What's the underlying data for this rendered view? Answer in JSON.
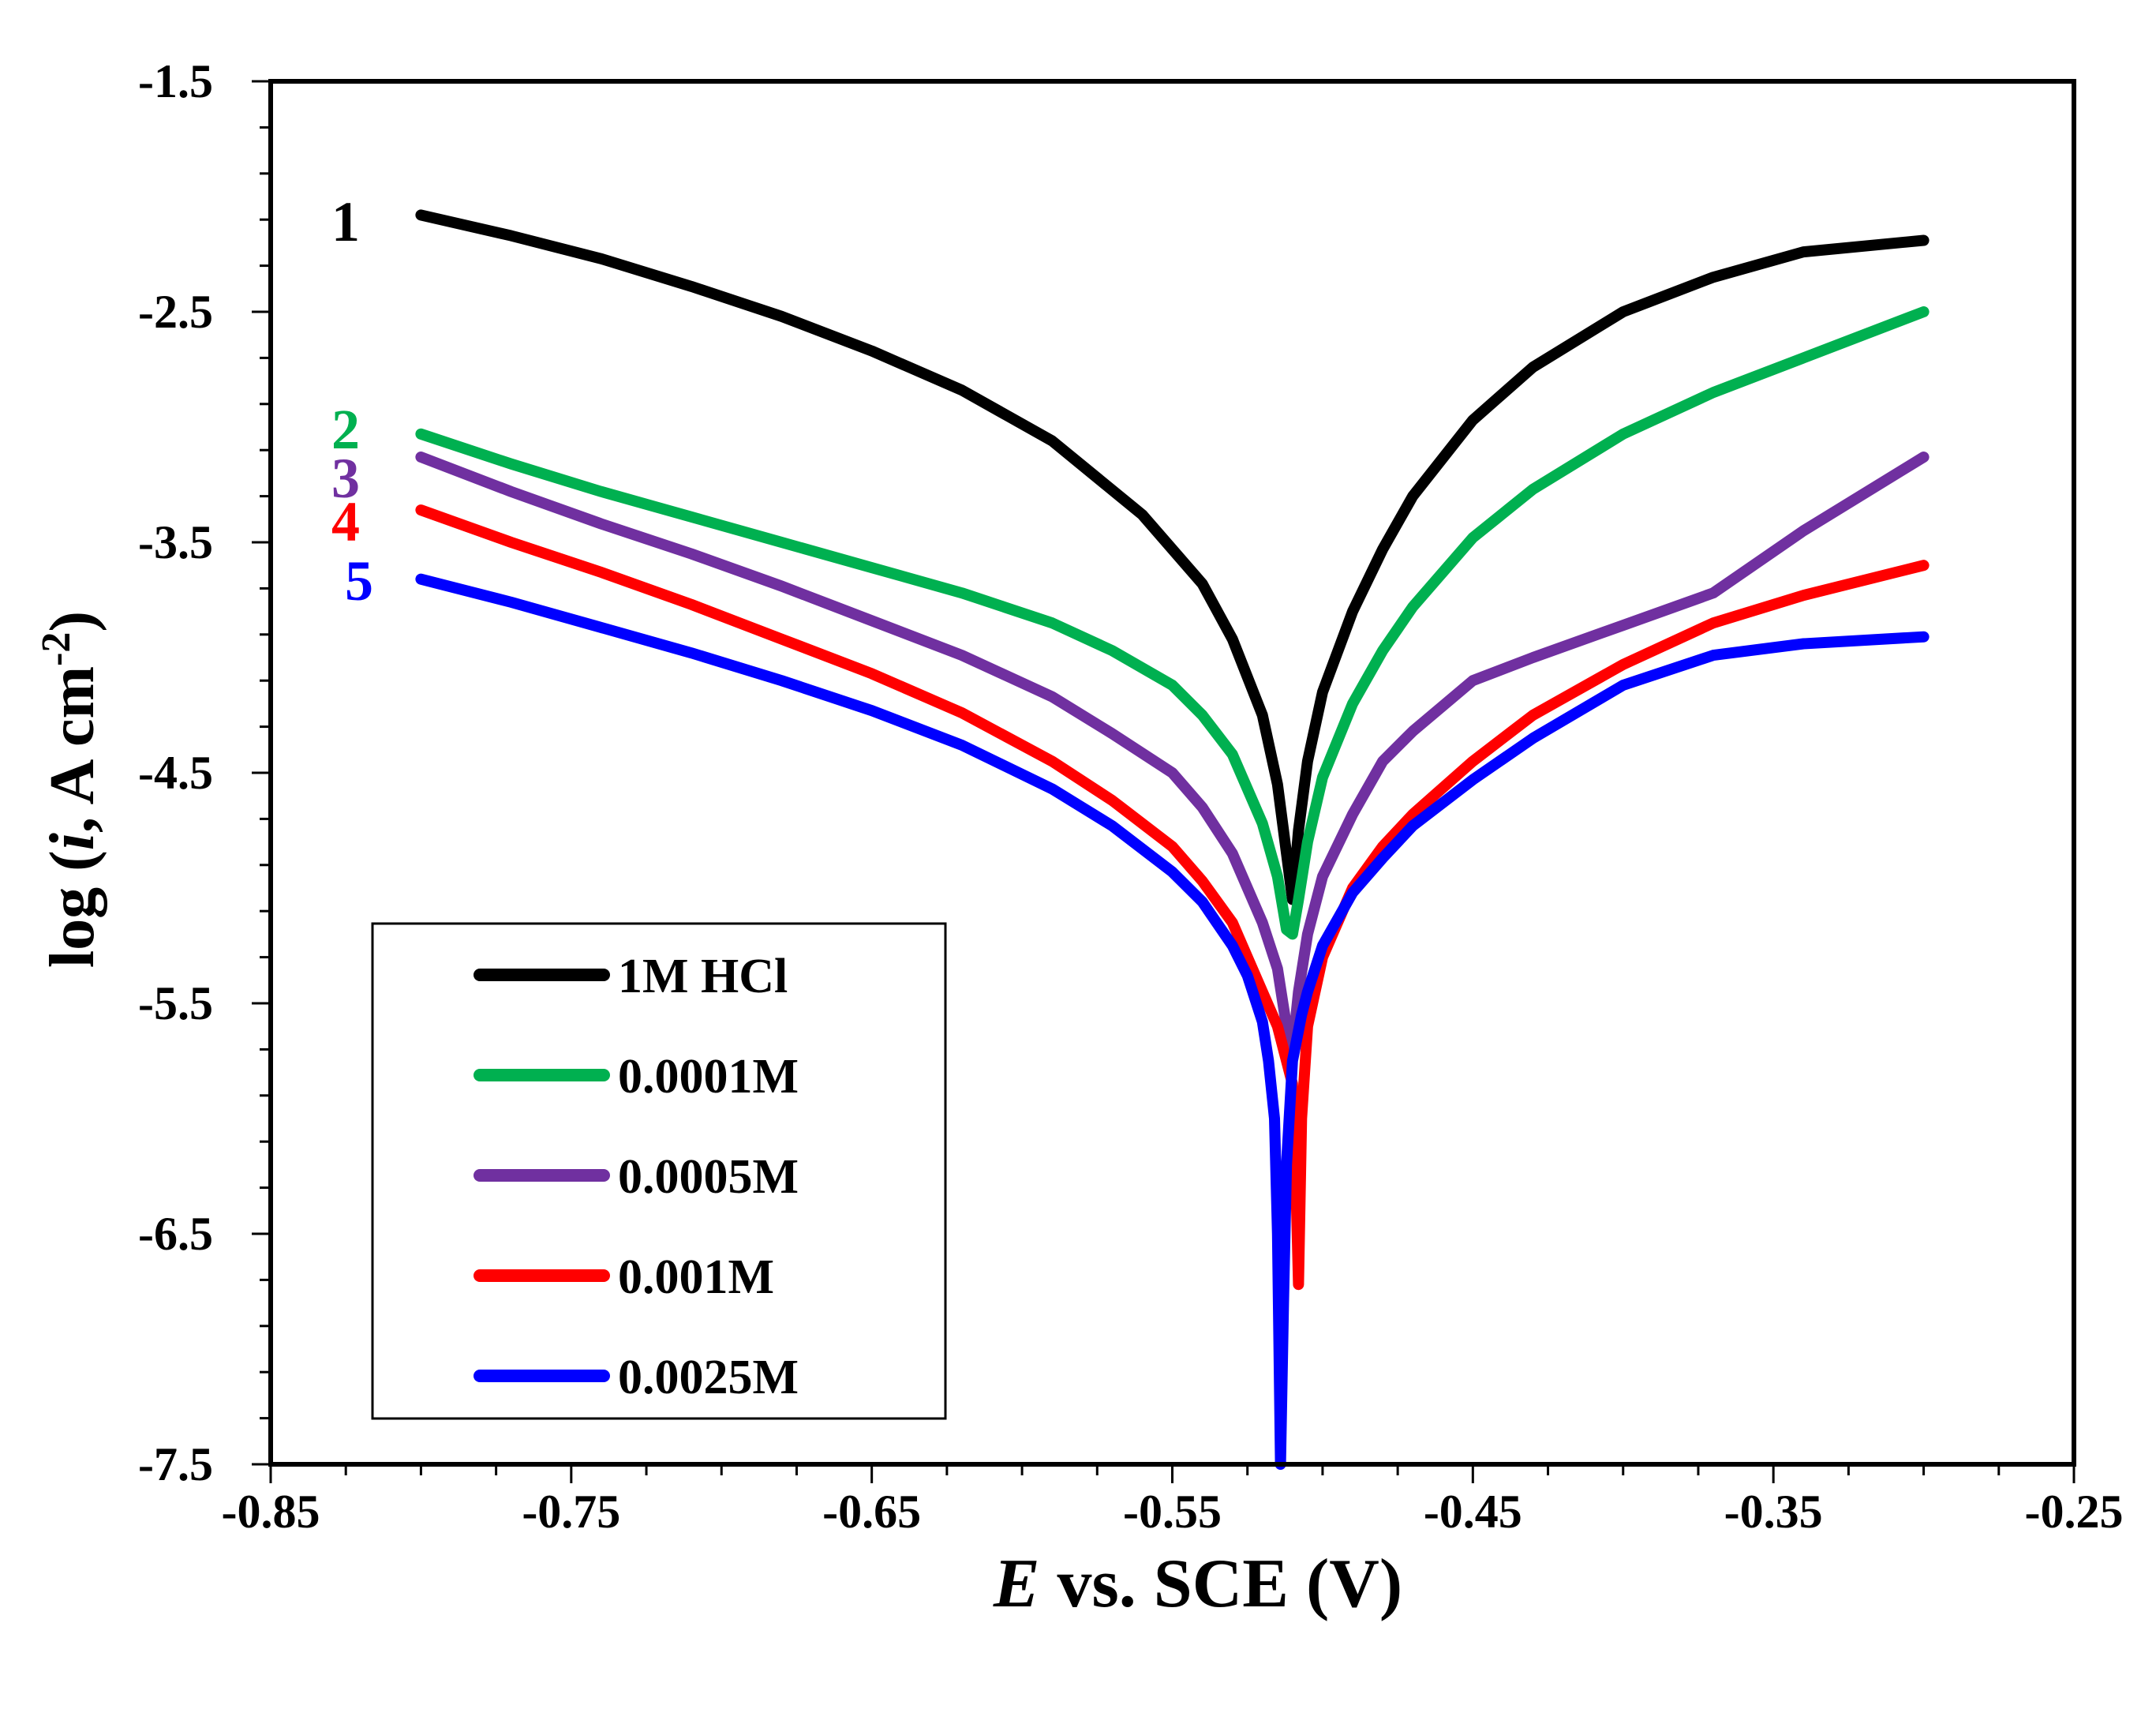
{
  "chart_data": {
    "type": "line",
    "title": "",
    "xlabel_italic": "E",
    "xlabel_rest": " vs. SCE (V)",
    "ylabel_prefix": "log (",
    "ylabel_italic": "i",
    "ylabel_mid": ", A cm",
    "ylabel_sup": "-2",
    "ylabel_suffix": ")",
    "xlim": [
      -0.85,
      -0.25
    ],
    "ylim": [
      -7.5,
      -1.5
    ],
    "x_ticks": [
      "-0.85",
      "-0.75",
      "-0.65",
      "-0.55",
      "-0.45",
      "-0.35",
      "-0.25"
    ],
    "y_ticks": [
      "-1.5",
      "-2.5",
      "-3.5",
      "-4.5",
      "-5.5",
      "-6.5",
      "-7.5"
    ],
    "legend_position": "bottom-left",
    "series": [
      {
        "name": "1M HCl",
        "label": "1",
        "color": "#000000",
        "x": [
          -0.8,
          -0.77,
          -0.74,
          -0.71,
          -0.68,
          -0.65,
          -0.62,
          -0.59,
          -0.56,
          -0.54,
          -0.53,
          -0.52,
          -0.515,
          -0.512,
          -0.51,
          -0.508,
          -0.505,
          -0.5,
          -0.49,
          -0.48,
          -0.47,
          -0.45,
          -0.43,
          -0.4,
          -0.37,
          -0.34,
          -0.3
        ],
        "y": [
          -2.08,
          -2.17,
          -2.27,
          -2.39,
          -2.52,
          -2.67,
          -2.84,
          -3.06,
          -3.38,
          -3.68,
          -3.92,
          -4.25,
          -4.55,
          -4.85,
          -5.05,
          -4.75,
          -4.45,
          -4.15,
          -3.8,
          -3.53,
          -3.3,
          -2.97,
          -2.74,
          -2.5,
          -2.35,
          -2.24,
          -2.19
        ]
      },
      {
        "name": "0.0001M",
        "label": "2",
        "color": "#00b050",
        "x": [
          -0.8,
          -0.77,
          -0.74,
          -0.71,
          -0.68,
          -0.65,
          -0.62,
          -0.59,
          -0.57,
          -0.55,
          -0.54,
          -0.53,
          -0.52,
          -0.515,
          -0.512,
          -0.51,
          -0.508,
          -0.505,
          -0.5,
          -0.49,
          -0.48,
          -0.47,
          -0.45,
          -0.43,
          -0.4,
          -0.37,
          -0.34,
          -0.3
        ],
        "y": [
          -3.03,
          -3.16,
          -3.28,
          -3.39,
          -3.5,
          -3.61,
          -3.72,
          -3.85,
          -3.97,
          -4.12,
          -4.25,
          -4.42,
          -4.72,
          -4.95,
          -5.18,
          -5.2,
          -5.05,
          -4.8,
          -4.52,
          -4.2,
          -3.97,
          -3.78,
          -3.48,
          -3.27,
          -3.03,
          -2.85,
          -2.7,
          -2.5
        ]
      },
      {
        "name": "0.0005M",
        "label": "3",
        "color": "#7030a0",
        "x": [
          -0.8,
          -0.77,
          -0.74,
          -0.71,
          -0.68,
          -0.65,
          -0.62,
          -0.59,
          -0.57,
          -0.55,
          -0.54,
          -0.53,
          -0.52,
          -0.515,
          -0.512,
          -0.51,
          -0.508,
          -0.505,
          -0.5,
          -0.49,
          -0.48,
          -0.47,
          -0.45,
          -0.43,
          -0.4,
          -0.37,
          -0.34,
          -0.3
        ],
        "y": [
          -3.13,
          -3.28,
          -3.42,
          -3.55,
          -3.69,
          -3.84,
          -3.99,
          -4.17,
          -4.33,
          -4.5,
          -4.65,
          -4.85,
          -5.15,
          -5.35,
          -5.6,
          -5.7,
          -5.45,
          -5.2,
          -4.95,
          -4.68,
          -4.45,
          -4.32,
          -4.1,
          -4.0,
          -3.86,
          -3.72,
          -3.45,
          -3.13
        ]
      },
      {
        "name": "0.001M",
        "label": "4",
        "color": "#ff0000",
        "x": [
          -0.8,
          -0.77,
          -0.74,
          -0.71,
          -0.68,
          -0.65,
          -0.62,
          -0.59,
          -0.57,
          -0.55,
          -0.54,
          -0.53,
          -0.525,
          -0.52,
          -0.515,
          -0.512,
          -0.51,
          -0.509,
          -0.508,
          -0.507,
          -0.505,
          -0.5,
          -0.49,
          -0.48,
          -0.47,
          -0.45,
          -0.43,
          -0.4,
          -0.37,
          -0.34,
          -0.3
        ],
        "y": [
          -3.36,
          -3.5,
          -3.63,
          -3.77,
          -3.92,
          -4.07,
          -4.24,
          -4.45,
          -4.62,
          -4.82,
          -4.97,
          -5.15,
          -5.3,
          -5.45,
          -5.6,
          -5.75,
          -5.85,
          -6.2,
          -6.72,
          -6.0,
          -5.6,
          -5.3,
          -5.0,
          -4.82,
          -4.68,
          -4.45,
          -4.25,
          -4.03,
          -3.85,
          -3.73,
          -3.6
        ]
      },
      {
        "name": "0.0025M",
        "label": "5",
        "color": "#0000ff",
        "x": [
          -0.8,
          -0.77,
          -0.74,
          -0.71,
          -0.68,
          -0.65,
          -0.62,
          -0.59,
          -0.57,
          -0.55,
          -0.54,
          -0.53,
          -0.525,
          -0.52,
          -0.518,
          -0.516,
          -0.515,
          -0.514,
          -0.513,
          -0.512,
          -0.51,
          -0.507,
          -0.505,
          -0.5,
          -0.49,
          -0.48,
          -0.47,
          -0.45,
          -0.43,
          -0.4,
          -0.37,
          -0.34,
          -0.3
        ],
        "y": [
          -3.66,
          -3.76,
          -3.87,
          -3.98,
          -4.1,
          -4.23,
          -4.38,
          -4.57,
          -4.73,
          -4.93,
          -5.06,
          -5.25,
          -5.38,
          -5.58,
          -5.75,
          -6.0,
          -6.5,
          -7.5,
          -6.8,
          -6.2,
          -5.75,
          -5.55,
          -5.45,
          -5.25,
          -5.02,
          -4.87,
          -4.73,
          -4.53,
          -4.35,
          -4.12,
          -3.99,
          -3.94,
          -3.91
        ]
      }
    ]
  }
}
